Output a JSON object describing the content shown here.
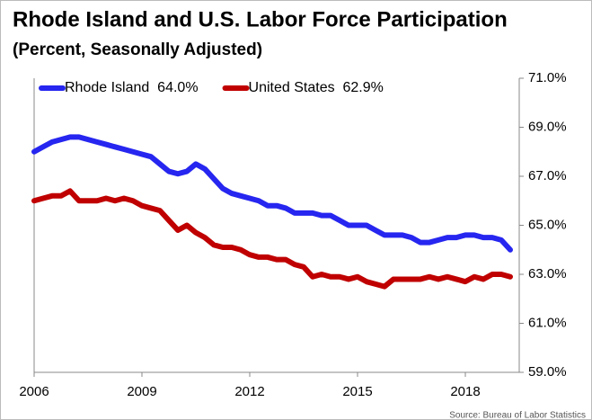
{
  "chart_data": {
    "type": "line",
    "title": "Rhode Island and U.S. Labor Force Participation",
    "subtitle": "(Percent, Seasonally Adjusted)",
    "source": "Source: Bureau of Labor Statistics",
    "x": [
      2006,
      2006.25,
      2006.5,
      2006.75,
      2007,
      2007.25,
      2007.5,
      2007.75,
      2008,
      2008.25,
      2008.5,
      2008.75,
      2009,
      2009.25,
      2009.5,
      2009.75,
      2010,
      2010.25,
      2010.5,
      2010.75,
      2011,
      2011.25,
      2011.5,
      2011.75,
      2012,
      2012.25,
      2012.5,
      2012.75,
      2013,
      2013.25,
      2013.5,
      2013.75,
      2014,
      2014.25,
      2014.5,
      2014.75,
      2015,
      2015.25,
      2015.5,
      2015.75,
      2016,
      2016.25,
      2016.5,
      2016.75,
      2017,
      2017.25,
      2017.5,
      2017.75,
      2018,
      2018.25,
      2018.5,
      2018.75,
      2019,
      2019.25
    ],
    "series": [
      {
        "name": "Rhode Island  64.0%",
        "color": "#2626f0",
        "values": [
          68.0,
          68.2,
          68.4,
          68.5,
          68.6,
          68.6,
          68.5,
          68.4,
          68.3,
          68.2,
          68.1,
          68.0,
          67.9,
          67.8,
          67.5,
          67.2,
          67.1,
          67.2,
          67.5,
          67.3,
          66.9,
          66.5,
          66.3,
          66.2,
          66.1,
          66.0,
          65.8,
          65.8,
          65.7,
          65.5,
          65.5,
          65.5,
          65.4,
          65.4,
          65.2,
          65.0,
          65.0,
          65.0,
          64.8,
          64.6,
          64.6,
          64.6,
          64.5,
          64.3,
          64.3,
          64.4,
          64.5,
          64.5,
          64.6,
          64.6,
          64.5,
          64.5,
          64.4,
          64.0
        ]
      },
      {
        "name": "United States  62.9%",
        "color": "#c00000",
        "values": [
          66.0,
          66.1,
          66.2,
          66.2,
          66.4,
          66.0,
          66.0,
          66.0,
          66.1,
          66.0,
          66.1,
          66.0,
          65.8,
          65.7,
          65.6,
          65.2,
          64.8,
          65.0,
          64.7,
          64.5,
          64.2,
          64.1,
          64.1,
          64.0,
          63.8,
          63.7,
          63.7,
          63.6,
          63.6,
          63.4,
          63.3,
          62.9,
          63.0,
          62.9,
          62.9,
          62.8,
          62.9,
          62.7,
          62.6,
          62.5,
          62.8,
          62.8,
          62.8,
          62.8,
          62.9,
          62.8,
          62.9,
          62.8,
          62.7,
          62.9,
          62.8,
          63.0,
          63.0,
          62.9
        ]
      }
    ],
    "xlim": [
      2006,
      2019.5
    ],
    "xticks": [
      2006,
      2009,
      2012,
      2015,
      2018
    ],
    "ylim": [
      59,
      71
    ],
    "yticks": [
      {
        "value": 59,
        "label": "59.0%"
      },
      {
        "value": 61,
        "label": "61.0%"
      },
      {
        "value": 63,
        "label": "63.0%"
      },
      {
        "value": 65,
        "label": "65.0%"
      },
      {
        "value": 67,
        "label": "67.0%"
      },
      {
        "value": 69,
        "label": "69.0%"
      },
      {
        "value": 71,
        "label": "71.0%"
      }
    ],
    "grid": false,
    "legend": "top-left"
  }
}
